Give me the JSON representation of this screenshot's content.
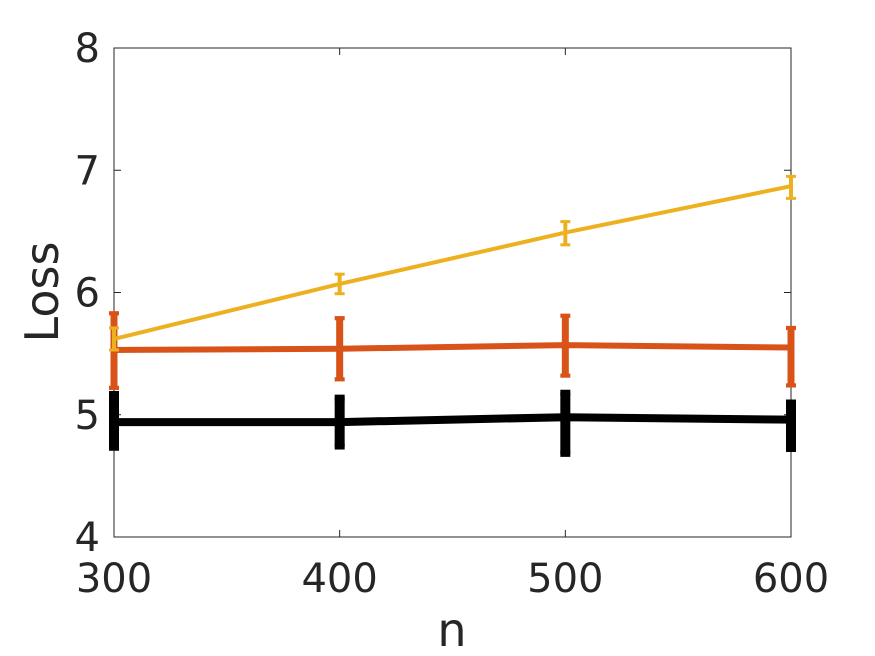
{
  "chart_data": {
    "type": "line",
    "title": "",
    "xlabel": "n",
    "ylabel": "Loss",
    "x": [
      300,
      400,
      500,
      600
    ],
    "xlim": [
      300,
      600
    ],
    "ylim": [
      4,
      8
    ],
    "xticks": [
      300,
      400,
      500,
      600
    ],
    "yticks": [
      4,
      5,
      6,
      7,
      8
    ],
    "xtick_labels": [
      "300",
      "400",
      "500",
      "600"
    ],
    "ytick_labels": [
      "4",
      "5",
      "6",
      "7",
      "8"
    ],
    "grid": false,
    "series": [
      {
        "color": "#000000",
        "y": [
          4.94,
          4.94,
          4.98,
          4.96
        ],
        "err_low": [
          4.73,
          4.74,
          4.68,
          4.72
        ],
        "err_high": [
          5.17,
          5.14,
          5.18,
          5.1
        ],
        "line_width": 8,
        "bar_width": 10
      },
      {
        "color": "#D95319",
        "y": [
          5.53,
          5.54,
          5.57,
          5.55
        ],
        "err_low": [
          5.22,
          5.29,
          5.32,
          5.24
        ],
        "err_high": [
          5.83,
          5.79,
          5.81,
          5.71
        ],
        "line_width": 6,
        "bar_width": 7
      },
      {
        "color": "#EDB120",
        "y": [
          5.62,
          6.07,
          6.49,
          6.87
        ],
        "err_low": [
          5.53,
          5.99,
          6.39,
          6.77
        ],
        "err_high": [
          5.71,
          6.15,
          6.58,
          6.95
        ],
        "line_width": 4,
        "bar_width": 4
      }
    ]
  }
}
